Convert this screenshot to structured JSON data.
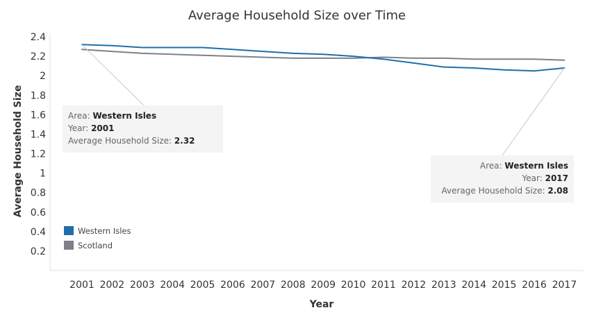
{
  "chart_data": {
    "type": "line",
    "title": "Average Household Size over Time",
    "xlabel": "Year",
    "ylabel": "Average Household Size",
    "ylim": [
      0,
      2.4
    ],
    "y_ticks": [
      "0.2",
      "0.4",
      "0.6",
      "0.8",
      "1",
      "1.2",
      "1.4",
      "1.6",
      "1.8",
      "2",
      "2.2",
      "2.4"
    ],
    "categories": [
      "2001",
      "2002",
      "2003",
      "2004",
      "2005",
      "2006",
      "2007",
      "2008",
      "2009",
      "2010",
      "2011",
      "2012",
      "2013",
      "2014",
      "2015",
      "2016",
      "2017"
    ],
    "series": [
      {
        "name": "Western Isles",
        "color": "#1f6fa8",
        "values": [
          2.32,
          2.31,
          2.29,
          2.29,
          2.29,
          2.27,
          2.25,
          2.23,
          2.22,
          2.2,
          2.17,
          2.13,
          2.09,
          2.08,
          2.06,
          2.05,
          2.08
        ]
      },
      {
        "name": "Scotland",
        "color": "#7f7f88",
        "values": [
          2.27,
          2.25,
          2.23,
          2.22,
          2.21,
          2.2,
          2.19,
          2.18,
          2.18,
          2.18,
          2.19,
          2.18,
          2.18,
          2.17,
          2.17,
          2.17,
          2.16
        ]
      }
    ],
    "legend_position": "bottom-left",
    "grid": false
  },
  "tooltips": [
    {
      "area_label": "Area: ",
      "area_value": "Western Isles",
      "year_label": "Year: ",
      "year_value": "2001",
      "size_label": "Average Household Size: ",
      "size_value": "2.32",
      "anchor_year": "2001",
      "anchor_series": "Western Isles"
    },
    {
      "area_label": "Area: ",
      "area_value": "Western Isles",
      "year_label": "Year: ",
      "year_value": "2017",
      "size_label": "Average Household Size: ",
      "size_value": "2.08",
      "anchor_year": "2017",
      "anchor_series": "Western Isles"
    }
  ]
}
